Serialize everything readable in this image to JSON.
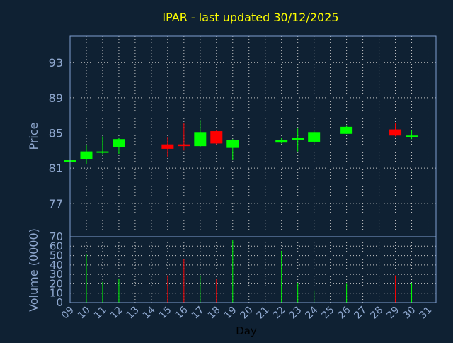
{
  "chart_data": {
    "type": "candlestick",
    "title": "IPAR - last updated 30/12/2025",
    "xlabel": "Day",
    "x_ticks": [
      "09",
      "10",
      "11",
      "12",
      "13",
      "14",
      "15",
      "16",
      "17",
      "18",
      "19",
      "20",
      "21",
      "22",
      "23",
      "24",
      "25",
      "26",
      "27",
      "28",
      "29",
      "30",
      "31"
    ],
    "price_panel": {
      "ylabel": "Price",
      "ylim": [
        73.2,
        96
      ],
      "y_ticks": [
        77,
        81,
        85,
        89,
        93
      ],
      "grid": true
    },
    "volume_panel": {
      "ylabel": "Volume (0000)",
      "ylim": [
        0,
        70
      ],
      "y_ticks": [
        0,
        10,
        20,
        30,
        40,
        50,
        60,
        70
      ],
      "grid": true
    },
    "candles": [
      {
        "day": "09",
        "open": 81.8,
        "high": 82.0,
        "low": 81.6,
        "close": 81.9,
        "volume": 0
      },
      {
        "day": "10",
        "open": 82.0,
        "high": 83.6,
        "low": 81.5,
        "close": 82.9,
        "volume": 51
      },
      {
        "day": "11",
        "open": 82.8,
        "high": 84.6,
        "low": 82.5,
        "close": 82.9,
        "volume": 22
      },
      {
        "day": "12",
        "open": 83.4,
        "high": 84.4,
        "low": 82.6,
        "close": 84.3,
        "volume": 25
      },
      {
        "day": "15",
        "open": 83.7,
        "high": 84.5,
        "low": 82.3,
        "close": 83.2,
        "volume": 29
      },
      {
        "day": "16",
        "open": 83.7,
        "high": 86.1,
        "low": 83.0,
        "close": 83.5,
        "volume": 46
      },
      {
        "day": "17",
        "open": 83.5,
        "high": 86.4,
        "low": 83.4,
        "close": 85.1,
        "volume": 29
      },
      {
        "day": "18",
        "open": 85.2,
        "high": 85.3,
        "low": 83.7,
        "close": 83.8,
        "volume": 25
      },
      {
        "day": "19",
        "open": 83.3,
        "high": 84.3,
        "low": 81.9,
        "close": 84.2,
        "volume": 67
      },
      {
        "day": "22",
        "open": 83.9,
        "high": 84.4,
        "low": 83.8,
        "close": 84.2,
        "volume": 55
      },
      {
        "day": "23",
        "open": 84.3,
        "high": 85.5,
        "low": 82.9,
        "close": 84.4,
        "volume": 21
      },
      {
        "day": "24",
        "open": 84.0,
        "high": 85.3,
        "low": 83.6,
        "close": 85.1,
        "volume": 13
      },
      {
        "day": "26",
        "open": 84.9,
        "high": 85.8,
        "low": 84.9,
        "close": 85.7,
        "volume": 20
      },
      {
        "day": "29",
        "open": 85.4,
        "high": 86.1,
        "low": 84.6,
        "close": 84.7,
        "volume": 29
      },
      {
        "day": "30",
        "open": 84.6,
        "high": 85.3,
        "low": 84.3,
        "close": 84.7,
        "volume": 21
      }
    ]
  },
  "colors": {
    "background": "#0f2133",
    "frame": "#7f9fd0",
    "grid": "#c8c8c8",
    "title": "#ffff00",
    "axis_text": "#8fa8cf",
    "up": "#00ff00",
    "down": "#ff0000",
    "xlabel": "#000000"
  }
}
